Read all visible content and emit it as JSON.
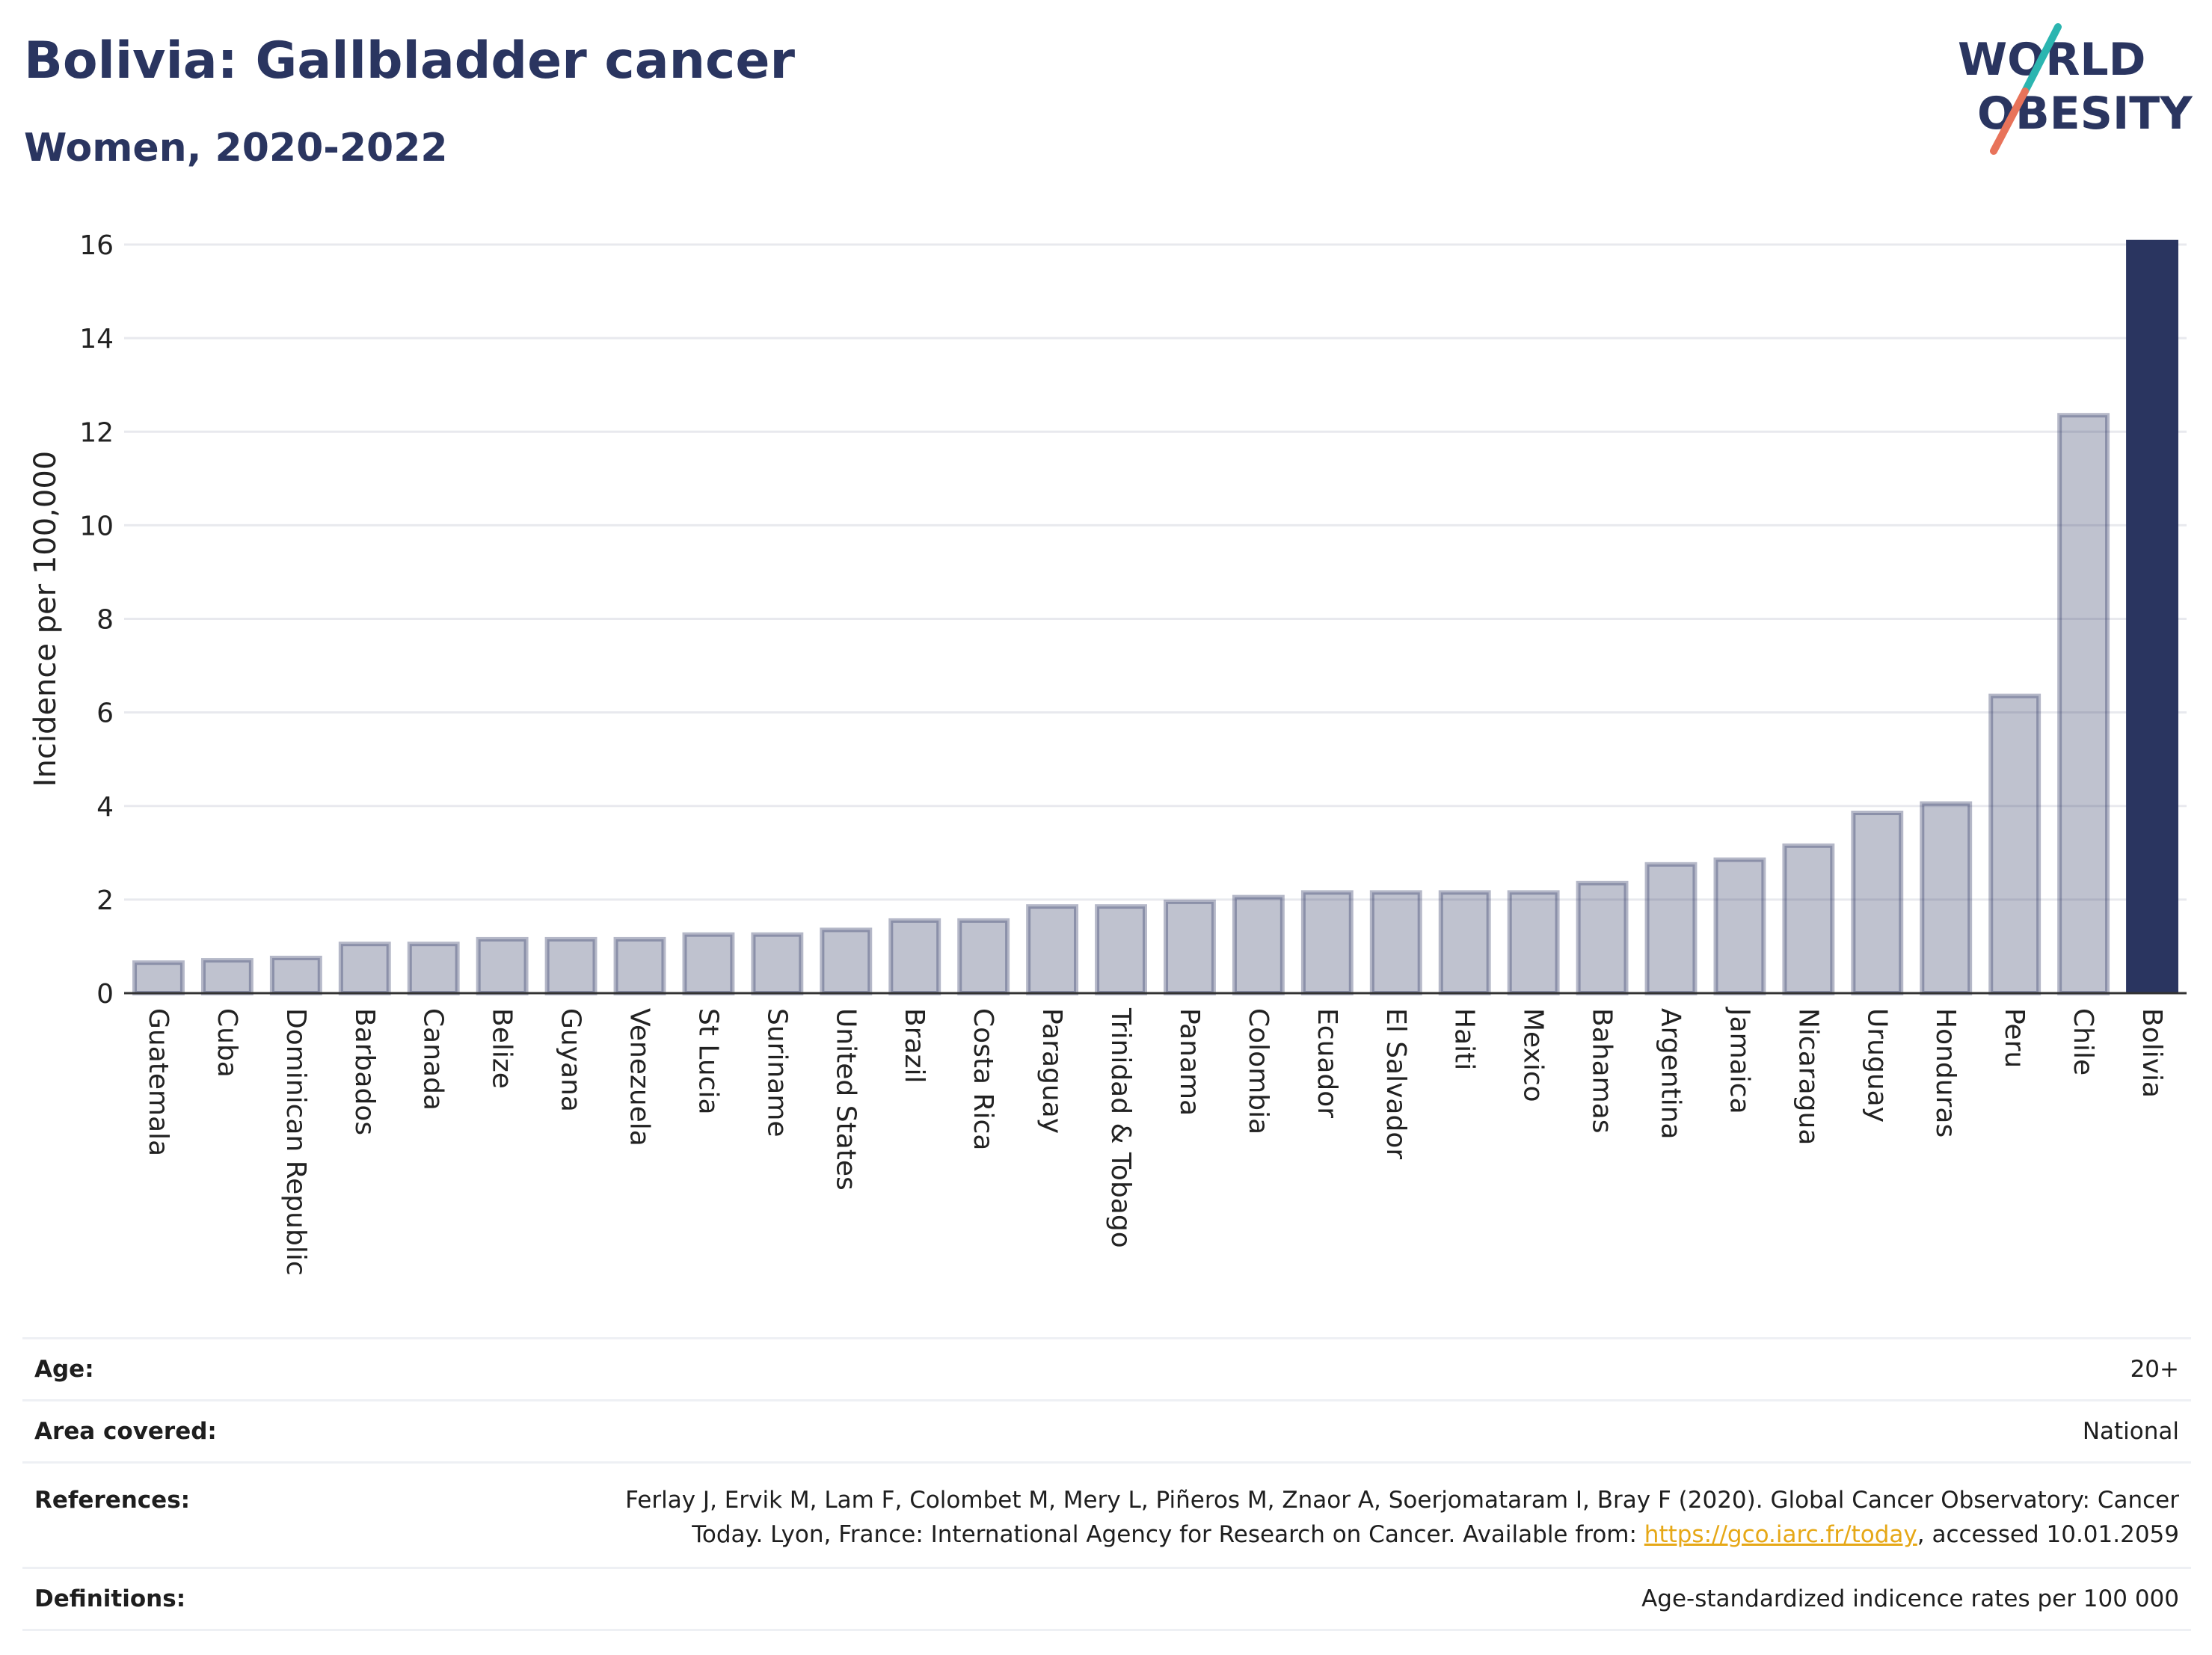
{
  "header": {
    "title": "Bolivia: Gallbladder cancer",
    "subtitle": "Women, 2020-2022"
  },
  "logo": {
    "line1": "WORLD",
    "line2": "OBESITY",
    "colors": {
      "text": "#2a3560",
      "slash_top": "#2bb5b0",
      "slash_bottom": "#e8735a"
    }
  },
  "chart_data": {
    "type": "bar",
    "title": "Bolivia: Gallbladder cancer",
    "subtitle": "Women, 2020-2022",
    "ylabel": "Incidence per 100,000",
    "xlabel": "",
    "ylim": [
      0,
      16
    ],
    "yticks": [
      0,
      2,
      4,
      6,
      8,
      10,
      12,
      14,
      16
    ],
    "grid": true,
    "highlight": "Bolivia",
    "colors": {
      "bar": "#2a3560",
      "bar_fill_opacity": 0.3,
      "highlight": "#2a3560",
      "grid": "#e8e9ee",
      "axis": "#333333"
    },
    "categories": [
      "Guatemala",
      "Cuba",
      "Dominican Republic",
      "Barbados",
      "Canada",
      "Belize",
      "Guyana",
      "Venezuela",
      "St Lucia",
      "Suriname",
      "United States",
      "Brazil",
      "Costa Rica",
      "Paraguay",
      "Trinidad & Tobago",
      "Panama",
      "Colombia",
      "Ecuador",
      "El Salvador",
      "Haiti",
      "Mexico",
      "Bahamas",
      "Argentina",
      "Jamaica",
      "Nicaragua",
      "Uruguay",
      "Honduras",
      "Peru",
      "Chile",
      "Bolivia"
    ],
    "values": [
      0.7,
      0.75,
      0.8,
      1.1,
      1.1,
      1.2,
      1.2,
      1.2,
      1.3,
      1.3,
      1.4,
      1.6,
      1.6,
      1.9,
      1.9,
      2.0,
      2.1,
      2.2,
      2.2,
      2.2,
      2.2,
      2.4,
      2.8,
      2.9,
      3.2,
      3.9,
      4.1,
      6.4,
      12.4,
      16.1
    ]
  },
  "meta": {
    "age": {
      "label": "Age:",
      "value": "20+"
    },
    "area": {
      "label": "Area covered:",
      "value": "National"
    },
    "references": {
      "label": "References:",
      "text_before": "Ferlay J, Ervik M, Lam F, Colombet M, Mery L, Piñeros M, Znaor A, Soerjomataram I, Bray F (2020). Global Cancer Observatory: Cancer Today. Lyon, France: International Agency for Research on Cancer. Available from: ",
      "link": "https://gco.iarc.fr/today",
      "text_after": ", accessed 10.01.2059"
    },
    "definitions": {
      "label": "Definitions:",
      "value": "Age-standardized indicence rates per 100 000"
    }
  }
}
